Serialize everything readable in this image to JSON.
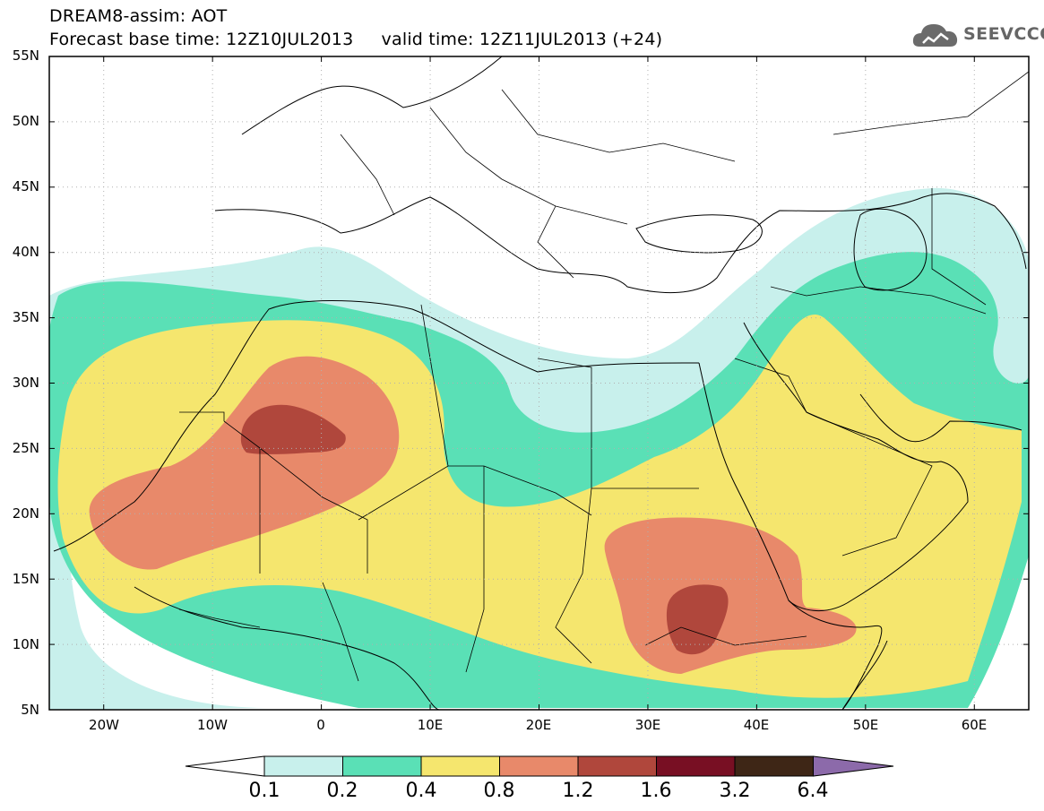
{
  "title": {
    "line1": "DREAM8-assim: AOT",
    "line2": "Forecast base time: 12Z10JUL2013     valid time: 12Z11JUL2013 (+24)"
  },
  "logo": {
    "text": "SEEVCCC",
    "icon": "cloud-icon"
  },
  "map": {
    "lon_range": [
      -25,
      65
    ],
    "lat_range": [
      5,
      55
    ],
    "lat_labels": [
      "55N",
      "50N",
      "45N",
      "40N",
      "35N",
      "30N",
      "25N",
      "20N",
      "15N",
      "10N",
      "5N"
    ],
    "lon_labels": [
      "20W",
      "10W",
      "0",
      "10E",
      "20E",
      "30E",
      "40E",
      "50E",
      "60E"
    ]
  },
  "colorbar": {
    "labels": [
      "0.1",
      "0.2",
      "0.4",
      "0.8",
      "1.2",
      "1.6",
      "3.2",
      "6.4"
    ],
    "colors": [
      "#ffffff",
      "#c8f0ec",
      "#5ae0b6",
      "#f5e66e",
      "#e8896a",
      "#b0473c",
      "#780f23",
      "#3e2616",
      "#8c6aaa"
    ]
  }
}
